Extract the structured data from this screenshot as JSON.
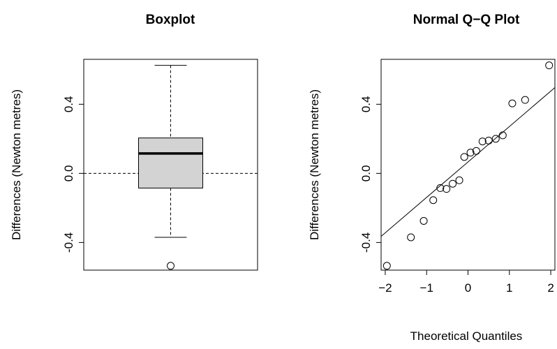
{
  "chart_data": [
    {
      "type": "boxplot",
      "title": "Boxplot",
      "ylabel": "Differences (Newton metres)",
      "ylim": [
        -0.56,
        0.66
      ],
      "y_ticks": [
        -0.4,
        0.0,
        0.4
      ],
      "y_tick_labels": [
        "-0.4",
        "0.0",
        "0.4"
      ],
      "box": {
        "min": -0.37,
        "q1": -0.085,
        "median": 0.115,
        "q3": 0.205,
        "max": 0.625
      },
      "outliers": [
        -0.535
      ],
      "reference_line_y": 0.0,
      "fill_color": "#d3d3d3"
    },
    {
      "type": "scatter",
      "title": "Normal Q−Q Plot",
      "xlabel": "Theoretical Quantiles",
      "ylabel": "Differences (Newton metres)",
      "xlim": [
        -2.1,
        2.1
      ],
      "ylim": [
        -0.56,
        0.66
      ],
      "x_ticks": [
        -2,
        -1,
        0,
        1,
        2
      ],
      "x_tick_labels": [
        "−2",
        "−1",
        "0",
        "1",
        "2"
      ],
      "y_ticks": [
        -0.4,
        0.0,
        0.4
      ],
      "y_tick_labels": [
        "-0.4",
        "0.0",
        "0.4"
      ],
      "points": [
        {
          "x": -1.96,
          "y": -0.535
        },
        {
          "x": -1.38,
          "y": -0.37
        },
        {
          "x": -1.07,
          "y": -0.275
        },
        {
          "x": -0.84,
          "y": -0.155
        },
        {
          "x": -0.67,
          "y": -0.085
        },
        {
          "x": -0.52,
          "y": -0.09
        },
        {
          "x": -0.37,
          "y": -0.06
        },
        {
          "x": -0.21,
          "y": -0.04
        },
        {
          "x": -0.09,
          "y": 0.095
        },
        {
          "x": 0.06,
          "y": 0.12
        },
        {
          "x": 0.2,
          "y": 0.13
        },
        {
          "x": 0.35,
          "y": 0.185
        },
        {
          "x": 0.5,
          "y": 0.19
        },
        {
          "x": 0.67,
          "y": 0.2
        },
        {
          "x": 0.84,
          "y": 0.22
        },
        {
          "x": 1.07,
          "y": 0.405
        },
        {
          "x": 1.38,
          "y": 0.425
        },
        {
          "x": 1.96,
          "y": 0.625
        }
      ],
      "qq_line": {
        "intercept": 0.066,
        "slope": 0.205
      }
    }
  ]
}
